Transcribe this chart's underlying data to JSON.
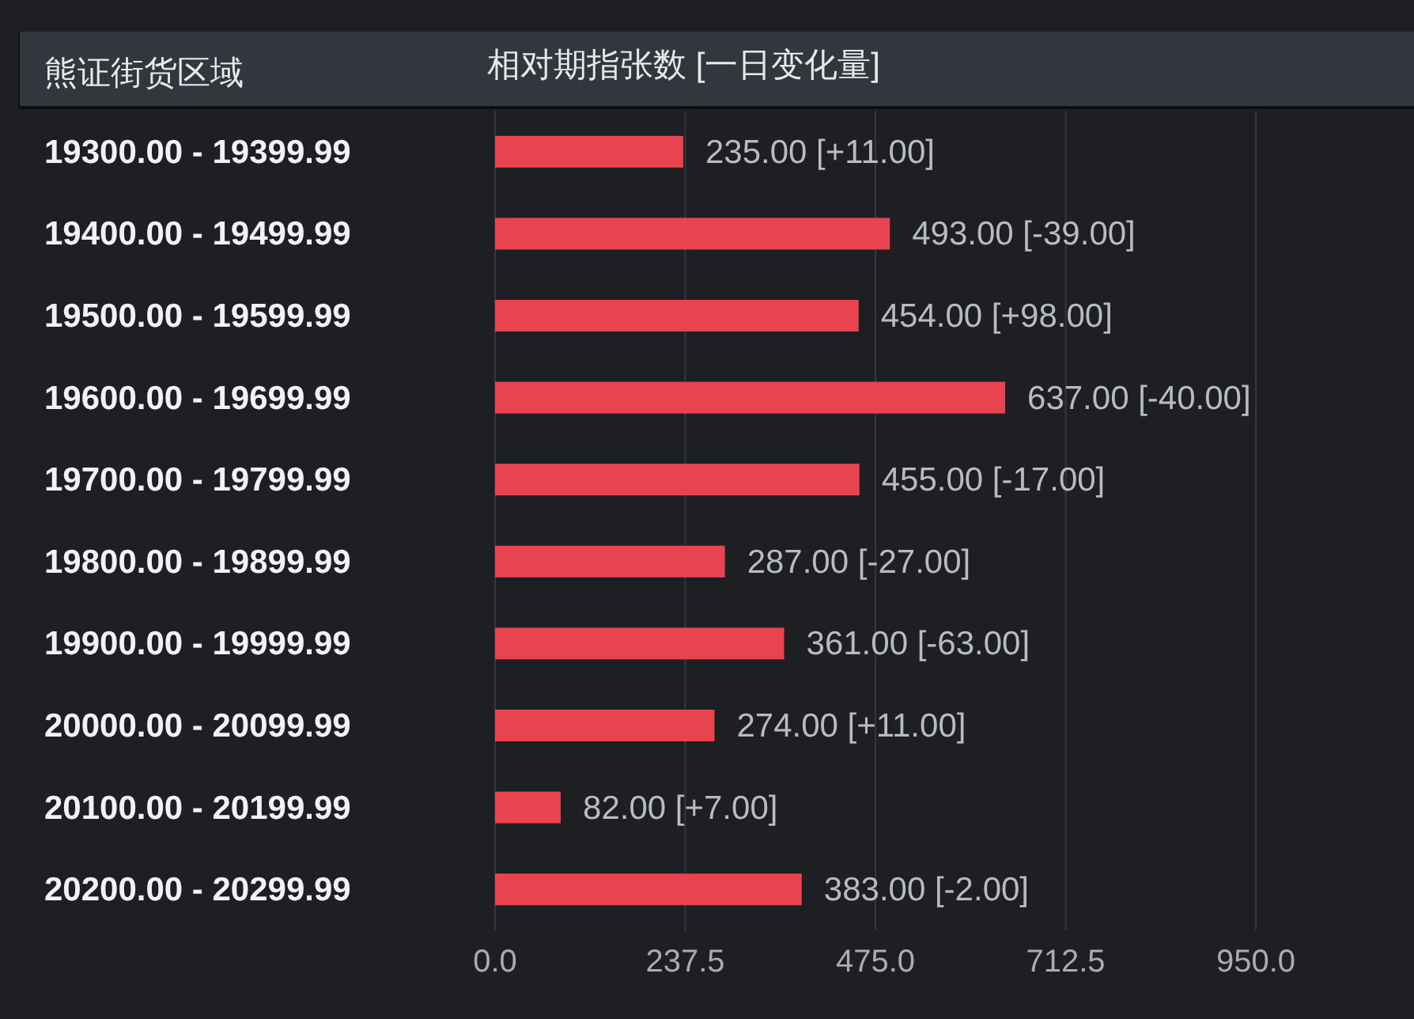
{
  "chart_data": {
    "type": "bar",
    "orientation": "horizontal",
    "title": "相对期指张数 [一日变化量]",
    "ylabel": "熊证街货区域",
    "categories": [
      "19300.00 - 19399.99",
      "19400.00 - 19499.99",
      "19500.00 - 19599.99",
      "19600.00 - 19699.99",
      "19700.00 - 19799.99",
      "19800.00 - 19899.99",
      "19900.00 - 19999.99",
      "20000.00 - 20099.99",
      "20100.00 - 20199.99",
      "20200.00 - 20299.99"
    ],
    "values": [
      235,
      493,
      454,
      637,
      455,
      287,
      361,
      274,
      82,
      383
    ],
    "value_labels": [
      "235.00 [+11.00]",
      "493.00 [-39.00]",
      "454.00 [+98.00]",
      "637.00 [-40.00]",
      "455.00 [-17.00]",
      "287.00 [-27.00]",
      "361.00 [-63.00]",
      "274.00 [+11.00]",
      "82.00 [+7.00]",
      "383.00 [-2.00]"
    ],
    "color": "#e8434f",
    "xlim": [
      0,
      950
    ],
    "xticks": [
      {
        "value": 0,
        "label": "0.0"
      },
      {
        "value": 237.5,
        "label": "237.5"
      },
      {
        "value": 475,
        "label": "475.0"
      },
      {
        "value": 712.5,
        "label": "712.5"
      },
      {
        "value": 950,
        "label": "950.0"
      }
    ],
    "grid": "x"
  }
}
